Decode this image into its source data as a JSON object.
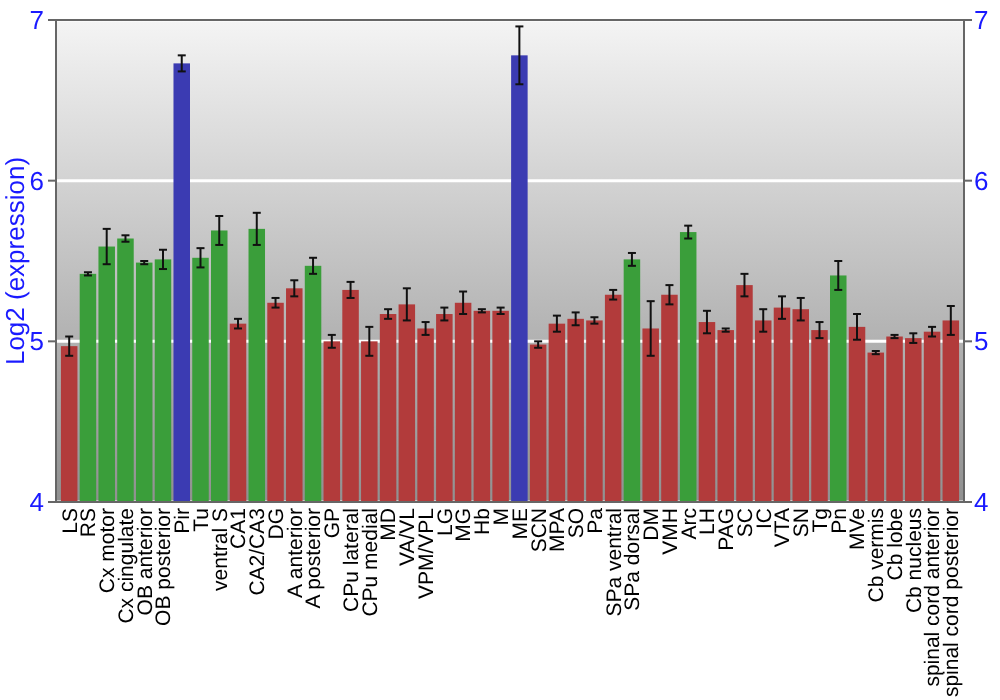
{
  "chart_data": {
    "type": "bar",
    "ylabel": "Log2 (expression)",
    "categories": [
      "LS",
      "RS",
      "Cx motor",
      "Cx cingulate",
      "OB anterior",
      "OB posterior",
      "Pir",
      "Tu",
      "ventral S",
      "CA1",
      "CA2/CA3",
      "DG",
      "A anterior",
      "A posterior",
      "GP",
      "CPu lateral",
      "CPu medial",
      "MD",
      "VA/VL",
      "VPM/VPL",
      "LG",
      "MG",
      "Hb",
      "M",
      "ME",
      "SCN",
      "MPA",
      "SO",
      "Pa",
      "SPa ventral",
      "SPa dorsal",
      "DM",
      "VMH",
      "Arc",
      "LH",
      "PAG",
      "SC",
      "IC",
      "VTA",
      "SN",
      "Tg",
      "Pn",
      "MVe",
      "Cb vermis",
      "Cb lobe",
      "Cb nucleus",
      "spinal cord anterior",
      "spinal cord posterior"
    ],
    "values": [
      4.97,
      5.42,
      5.59,
      5.64,
      5.49,
      5.51,
      6.73,
      5.52,
      5.69,
      5.11,
      5.7,
      5.24,
      5.33,
      5.47,
      5.0,
      5.32,
      5.0,
      5.17,
      5.23,
      5.08,
      5.17,
      5.24,
      5.19,
      5.19,
      6.78,
      4.98,
      5.11,
      5.14,
      5.13,
      5.29,
      5.51,
      5.08,
      5.29,
      5.68,
      5.12,
      5.07,
      5.35,
      5.13,
      5.21,
      5.2,
      5.07,
      5.41,
      5.09,
      4.93,
      5.03,
      5.02,
      5.06,
      5.13
    ],
    "errors": [
      0.06,
      0.01,
      0.11,
      0.02,
      0.01,
      0.06,
      0.05,
      0.06,
      0.09,
      0.03,
      0.1,
      0.03,
      0.05,
      0.05,
      0.04,
      0.05,
      0.09,
      0.03,
      0.1,
      0.04,
      0.04,
      0.07,
      0.01,
      0.02,
      0.18,
      0.02,
      0.05,
      0.04,
      0.02,
      0.03,
      0.04,
      0.17,
      0.06,
      0.04,
      0.07,
      0.01,
      0.07,
      0.07,
      0.07,
      0.07,
      0.05,
      0.09,
      0.08,
      0.01,
      0.01,
      0.03,
      0.03,
      0.09
    ],
    "colors": [
      "#b23b3b",
      "#3a9e3a",
      "#3a9e3a",
      "#3a9e3a",
      "#3a9e3a",
      "#3a9e3a",
      "#3b3bb2",
      "#3a9e3a",
      "#3a9e3a",
      "#b23b3b",
      "#3a9e3a",
      "#b23b3b",
      "#b23b3b",
      "#3a9e3a",
      "#b23b3b",
      "#b23b3b",
      "#b23b3b",
      "#b23b3b",
      "#b23b3b",
      "#b23b3b",
      "#b23b3b",
      "#b23b3b",
      "#b23b3b",
      "#b23b3b",
      "#3b3bb2",
      "#b23b3b",
      "#b23b3b",
      "#b23b3b",
      "#b23b3b",
      "#b23b3b",
      "#3a9e3a",
      "#b23b3b",
      "#b23b3b",
      "#3a9e3a",
      "#b23b3b",
      "#b23b3b",
      "#b23b3b",
      "#b23b3b",
      "#b23b3b",
      "#b23b3b",
      "#b23b3b",
      "#3a9e3a",
      "#b23b3b",
      "#b23b3b",
      "#b23b3b",
      "#b23b3b",
      "#b23b3b",
      "#b23b3b"
    ],
    "ylim": [
      4,
      7
    ],
    "yticks": [
      4,
      5,
      6,
      7
    ],
    "y2lim": [
      4,
      7
    ],
    "y2ticks": [
      4,
      5,
      6,
      7
    ],
    "grid": "y"
  }
}
